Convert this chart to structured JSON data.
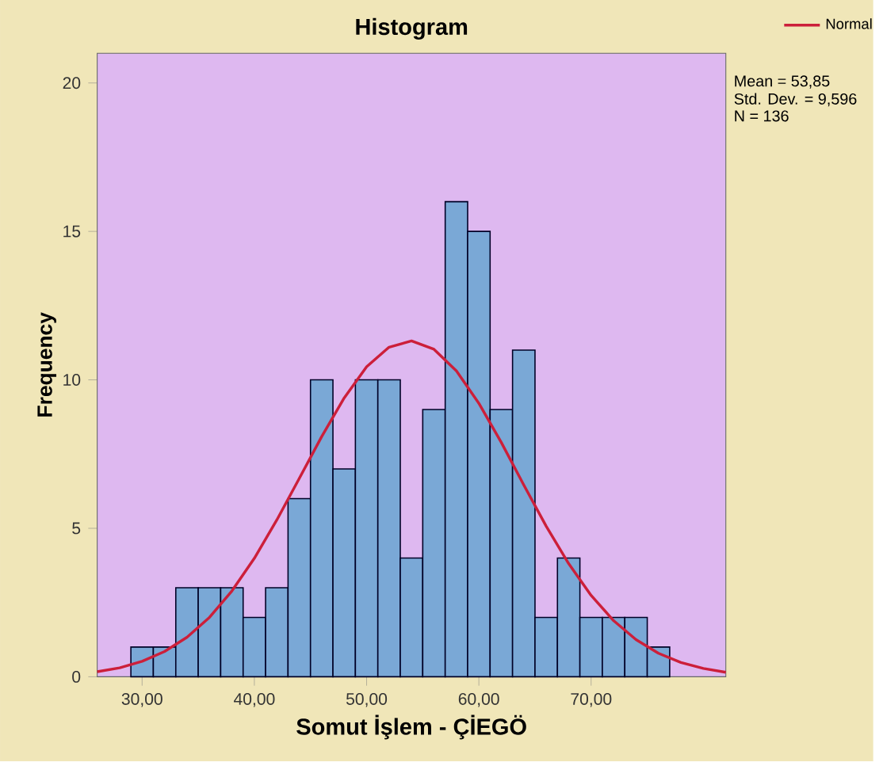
{
  "chart_data": {
    "type": "histogram",
    "title": "Histogram",
    "xlabel": "Somut İşlem - ÇİEGÖ",
    "ylabel": "Frequency",
    "bins": [
      29,
      31,
      33,
      35,
      37,
      39,
      41,
      43,
      45,
      47,
      49,
      51,
      53,
      55,
      57,
      59,
      61,
      63,
      65,
      67,
      69,
      71,
      73,
      75,
      77
    ],
    "values": [
      1,
      1,
      3,
      3,
      3,
      2,
      3,
      6,
      10,
      7,
      10,
      10,
      4,
      9,
      16,
      15,
      9,
      11,
      2,
      4,
      2,
      2,
      2,
      1
    ],
    "color": "#7aa8d6",
    "series": [
      {
        "type": "line",
        "name": "Normal",
        "color": "#cc1f3a",
        "x": [
          26,
          28,
          30,
          32,
          34,
          36,
          38,
          40,
          42,
          44,
          46,
          48,
          50,
          52,
          54,
          56,
          58,
          60,
          62,
          64,
          66,
          68,
          70,
          72,
          74,
          76,
          78,
          80,
          82
        ],
        "values": [
          0.17,
          0.3,
          0.52,
          0.85,
          1.33,
          2.0,
          2.89,
          3.99,
          5.28,
          6.68,
          8.09,
          9.39,
          10.44,
          11.1,
          11.31,
          11.03,
          10.3,
          9.21,
          7.89,
          6.46,
          5.07,
          3.81,
          2.74,
          1.89,
          1.25,
          0.79,
          0.48,
          0.28,
          0.15
        ]
      }
    ],
    "xlim": [
      26,
      82
    ],
    "ylim": [
      0,
      21
    ],
    "xticks": [
      {
        "value": 30,
        "label": "30,00"
      },
      {
        "value": 40,
        "label": "40,00"
      },
      {
        "value": 50,
        "label": "50,00"
      },
      {
        "value": 60,
        "label": "60,00"
      },
      {
        "value": 70,
        "label": "70,00"
      }
    ],
    "yticks": [
      0,
      5,
      10,
      15,
      20
    ],
    "legend": "top right",
    "annotations": [
      "Mean = 53,85",
      "Std. Dev. = 9,596",
      "N = 136"
    ]
  }
}
